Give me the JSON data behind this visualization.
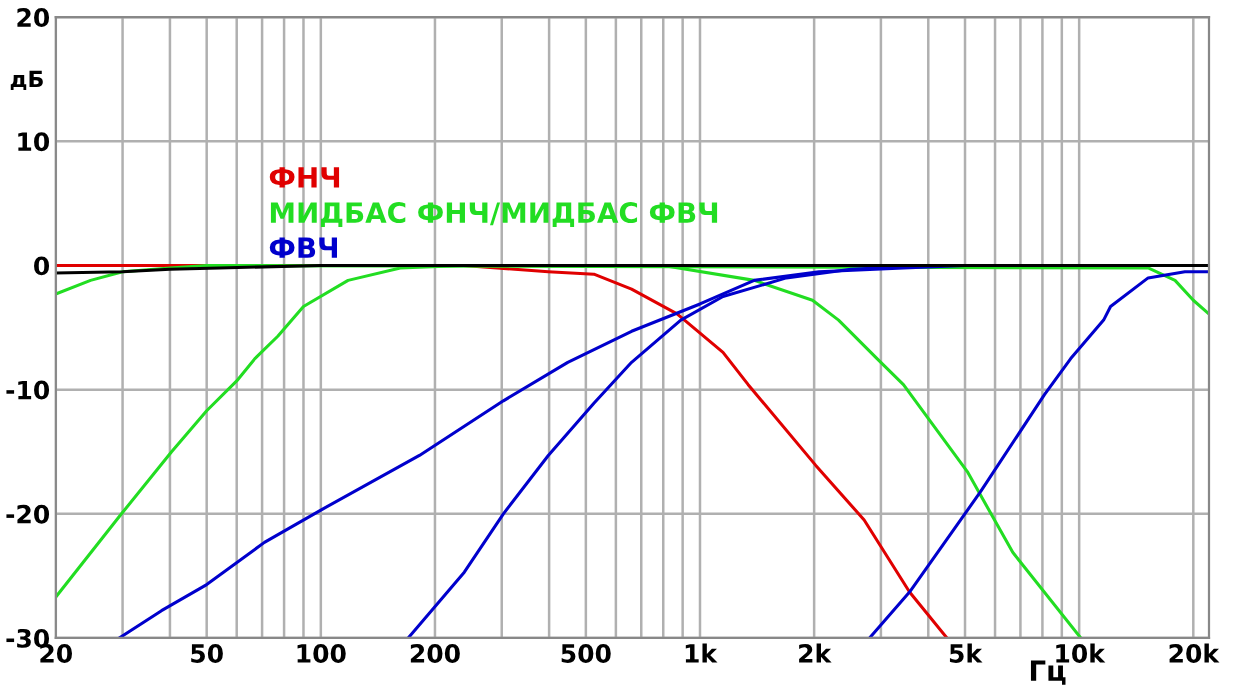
{
  "chart_data": {
    "type": "line",
    "xlabel": "Гц",
    "ylabel": "дБ",
    "log": "x",
    "grid": true,
    "legend": "top",
    "marker": "none",
    "line_style": "solid",
    "xlim": [
      20,
      22000
    ],
    "ylim": [
      -30,
      20
    ],
    "xticks": [
      20,
      {
        "value": 30,
        "label": null
      },
      {
        "value": 40,
        "label": null
      },
      50,
      {
        "value": 60,
        "label": null
      },
      {
        "value": 70,
        "label": null
      },
      {
        "value": 80,
        "label": null
      },
      {
        "value": 90,
        "label": null
      },
      100,
      200,
      {
        "value": 300,
        "label": null
      },
      {
        "value": 400,
        "label": null
      },
      500,
      {
        "value": 600,
        "label": null
      },
      {
        "value": 700,
        "label": null
      },
      {
        "value": 800,
        "label": null
      },
      {
        "value": 900,
        "label": null
      },
      {
        "value": 1000,
        "label": "1k"
      },
      {
        "value": 2000,
        "label": "2k"
      },
      {
        "value": 3000,
        "label": null
      },
      {
        "value": 4000,
        "label": null
      },
      {
        "value": 5000,
        "label": "5k"
      },
      {
        "value": 6000,
        "label": null
      },
      {
        "value": 7000,
        "label": null
      },
      {
        "value": 8000,
        "label": null
      },
      {
        "value": 9000,
        "label": null
      },
      {
        "value": 10000,
        "label": "10k"
      },
      {
        "value": 20000,
        "label": "20k"
      }
    ],
    "yticks": [
      -30,
      -20,
      -10,
      0,
      10,
      20
    ],
    "series": [
      {
        "name": "ФНЧ",
        "color": "#e00000",
        "x": [
          20,
          238,
          398,
          525,
          660,
          870,
          1150,
          1340,
          2020,
          2710,
          3570,
          4480
        ],
        "values": [
          0,
          0,
          -0.5,
          -0.7,
          -1.9,
          -3.9,
          -7,
          -9.6,
          -16.1,
          -20.5,
          -26.3,
          -30
        ]
      },
      {
        "name": "МИДБАС ФНЧ/МИДБАС ФВЧ",
        "color": "#22dd22",
        "x": [
          20,
          24.7,
          30,
          40,
          50,
          15200,
          17900,
          20000,
          22000
        ],
        "values": [
          -2.3,
          -1.2,
          -0.5,
          -0.2,
          0,
          -0.2,
          -1.2,
          -2.8,
          -3.9
        ]
      },
      {
        "color": "#22dd22",
        "x": [
          20,
          29.8,
          40.4,
          50,
          60,
          67,
          77,
          90,
          118,
          162,
          238,
          800,
          1390,
          1980,
          2320,
          2930,
          3440,
          5070,
          6680,
          10100
        ],
        "values": [
          -26.7,
          -20,
          -15,
          -11.7,
          -9.3,
          -7.5,
          -5.7,
          -3.3,
          -1.2,
          -0.2,
          0,
          0,
          -1.2,
          -2.8,
          -4.4,
          -7.5,
          -9.6,
          -16.6,
          -23.1,
          -30
        ]
      },
      {
        "name": "ФВЧ",
        "color": "#0000cc",
        "x": [
          29.4,
          38,
          50,
          71,
          100,
          182,
          303,
          448,
          660,
          1000,
          1390,
          2060,
          3440,
          5000,
          22000
        ],
        "values": [
          -30,
          -27.8,
          -25.7,
          -22.3,
          -19.7,
          -15.3,
          -10.9,
          -7.8,
          -5.3,
          -3.1,
          -1.2,
          -0.5,
          -0.2,
          0,
          0
        ]
      },
      {
        "color": "#0000cc",
        "x": [
          170,
          239,
          303,
          398,
          525,
          660,
          890,
          1150,
          1690,
          2500,
          4000,
          22000
        ],
        "values": [
          -30,
          -24.7,
          -20,
          -15.3,
          -11.1,
          -7.8,
          -4.4,
          -2.5,
          -1.0,
          -0.3,
          0,
          0
        ]
      },
      {
        "color": "#0000cc",
        "x": [
          2800,
          3570,
          5500,
          8100,
          9500,
          11600,
          12100,
          15200,
          19000,
          22000
        ],
        "values": [
          -30,
          -26.3,
          -18.2,
          -10.4,
          -7.5,
          -4.4,
          -3.3,
          -1.0,
          -0.5,
          -0.5
        ]
      },
      {
        "color": "#000000",
        "x": [
          20,
          30,
          40,
          54,
          100,
          22000
        ],
        "values": [
          -0.6,
          -0.5,
          -0.3,
          -0.2,
          0,
          0
        ]
      }
    ]
  }
}
